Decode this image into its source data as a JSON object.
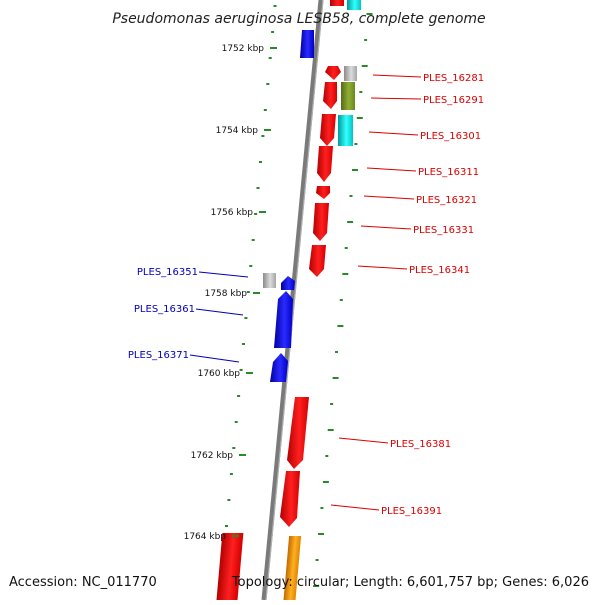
{
  "title": "Pseudomonas aeruginosa LESB58, complete genome",
  "accession_text": "Accession: NC_011770",
  "topology_text": "Topology: circular; Length: 6,601,757 bp; Genes: 6,026",
  "ticks": [
    "1752 kbp",
    "1754 kbp",
    "1756 kbp",
    "1758 kbp",
    "1760 kbp",
    "1762 kbp",
    "1764 kbp"
  ],
  "forward_genes": [
    "PLES_16281",
    "PLES_16291",
    "PLES_16301",
    "PLES_16311",
    "PLES_16321",
    "PLES_16331",
    "PLES_16341",
    "PLES_16381",
    "PLES_16391"
  ],
  "reverse_genes": [
    "PLES_16351",
    "PLES_16361",
    "PLES_16371"
  ],
  "colors": {
    "forward_cds": "#ee0000",
    "reverse_cds": "#0000ee",
    "backbone": "#808080",
    "gc_skew": "#2a8a2a",
    "fwd_label": "#dd0000",
    "rev_label": "#0000bb"
  }
}
